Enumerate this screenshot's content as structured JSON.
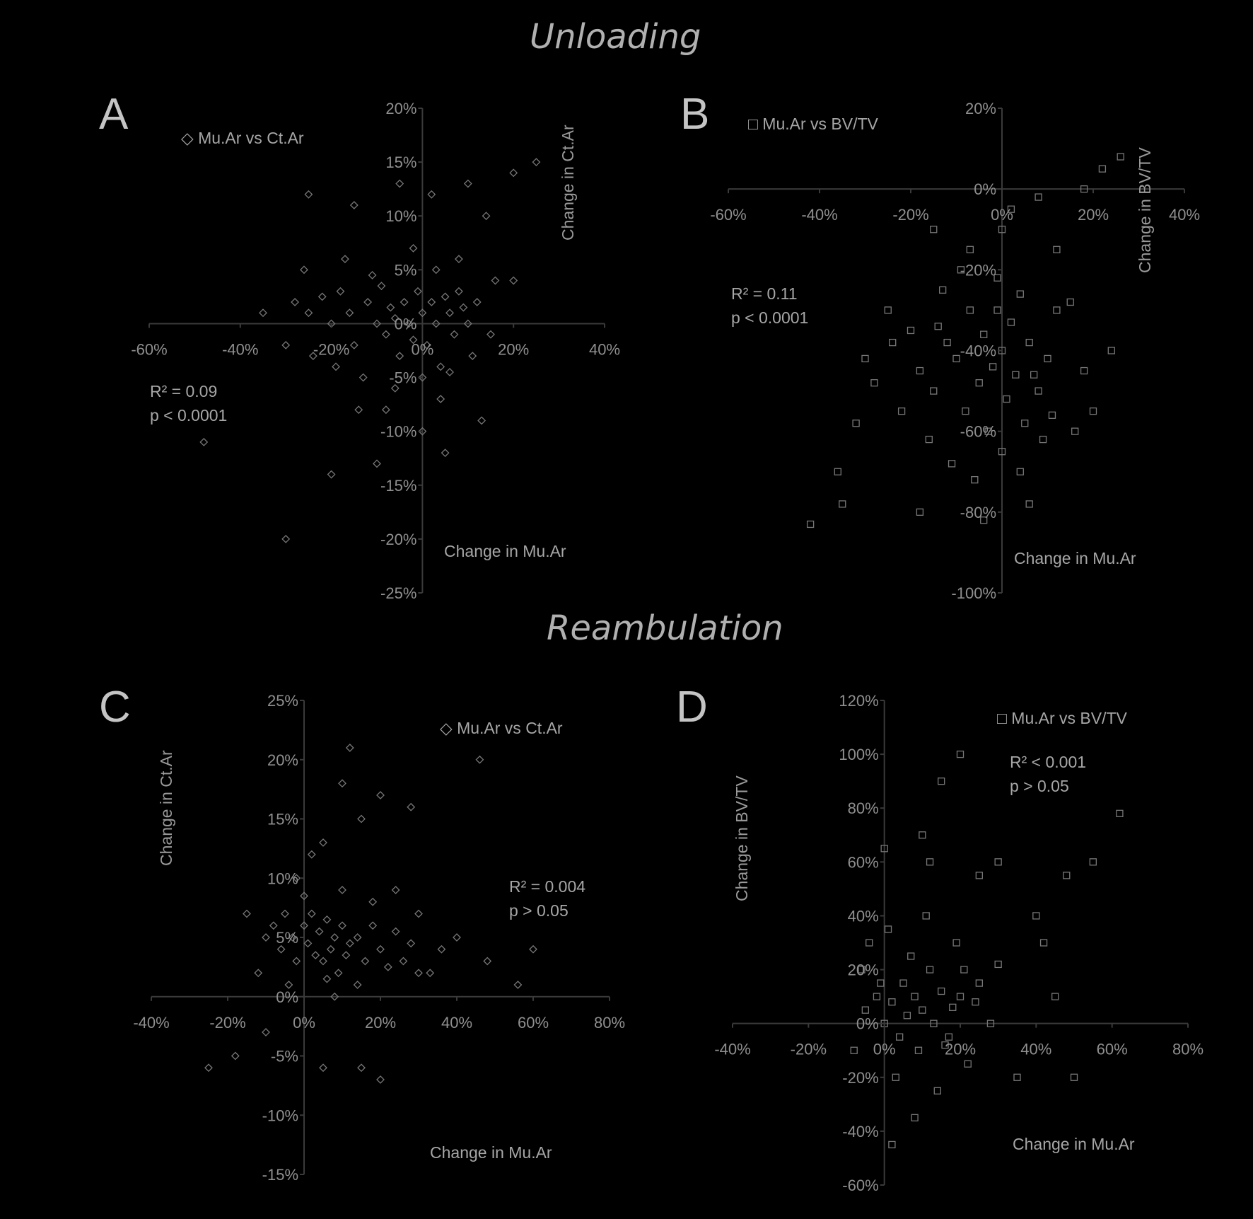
{
  "titles": {
    "unloading": "Unloading",
    "reambulation": "Reambulation"
  },
  "panels": {
    "A": {
      "letter": "A",
      "legend": "Mu.Ar vs Ct.Ar",
      "xlabel": "Change in Mu.Ar",
      "ylabel": "Change in Ct.Ar",
      "stats": [
        "R² = 0.09",
        "p < 0.0001"
      ]
    },
    "B": {
      "letter": "B",
      "legend": "Mu.Ar vs BV/TV",
      "xlabel": "Change in Mu.Ar",
      "ylabel": "Change in BV/TV",
      "stats": [
        "R² = 0.11",
        "p < 0.0001"
      ]
    },
    "C": {
      "letter": "C",
      "legend": "Mu.Ar vs Ct.Ar",
      "xlabel": "Change in Mu.Ar",
      "ylabel": "Change in Ct.Ar",
      "stats": [
        "R² = 0.004",
        "p > 0.05"
      ]
    },
    "D": {
      "letter": "D",
      "legend": "Mu.Ar vs BV/TV",
      "xlabel": "Change in Mu.Ar",
      "ylabel": "Change in BV/TV",
      "stats": [
        "R² < 0.001",
        "p > 0.05"
      ]
    }
  },
  "chart_data": [
    {
      "id": "A",
      "type": "scatter",
      "marker": "diamond",
      "xlim": [
        -0.6,
        0.4
      ],
      "ylim": [
        -0.25,
        0.2
      ],
      "xticks": [
        -0.6,
        -0.4,
        -0.2,
        0,
        0.2,
        0.4
      ],
      "xtick_labels": [
        "-60%",
        "-40%",
        "-20%",
        "0%",
        "20%",
        "40%"
      ],
      "yticks": [
        0.2,
        0.15,
        0.1,
        0.05,
        0,
        -0.05,
        -0.1,
        -0.15,
        -0.2,
        -0.25
      ],
      "ytick_labels": [
        "20%",
        "15%",
        "10%",
        "5%",
        "0%",
        "-5%",
        "-10%",
        "-15%",
        "-20%",
        "-25%"
      ],
      "points": [
        [
          -0.28,
          0.02
        ],
        [
          -0.25,
          0.01
        ],
        [
          -0.22,
          0.025
        ],
        [
          -0.2,
          0.0
        ],
        [
          -0.18,
          0.03
        ],
        [
          -0.16,
          0.01
        ],
        [
          -0.15,
          -0.02
        ],
        [
          -0.12,
          0.02
        ],
        [
          -0.1,
          0.0
        ],
        [
          -0.09,
          0.035
        ],
        [
          -0.08,
          -0.01
        ],
        [
          -0.07,
          0.015
        ],
        [
          -0.06,
          0.005
        ],
        [
          -0.05,
          -0.03
        ],
        [
          -0.04,
          0.02
        ],
        [
          -0.03,
          0.0
        ],
        [
          -0.02,
          -0.015
        ],
        [
          -0.01,
          0.03
        ],
        [
          0.0,
          0.01
        ],
        [
          0.01,
          -0.02
        ],
        [
          0.02,
          0.02
        ],
        [
          0.03,
          0.0
        ],
        [
          0.04,
          -0.04
        ],
        [
          0.05,
          0.025
        ],
        [
          0.06,
          0.01
        ],
        [
          0.07,
          -0.01
        ],
        [
          0.08,
          0.03
        ],
        [
          0.09,
          0.015
        ],
        [
          0.1,
          0.0
        ],
        [
          0.12,
          0.02
        ],
        [
          -0.24,
          -0.03
        ],
        [
          -0.19,
          -0.04
        ],
        [
          -0.13,
          -0.05
        ],
        [
          -0.11,
          0.045
        ],
        [
          -0.06,
          -0.06
        ],
        [
          0.0,
          -0.05
        ],
        [
          0.03,
          0.05
        ],
        [
          0.06,
          -0.045
        ],
        [
          0.11,
          -0.03
        ],
        [
          0.16,
          0.04
        ],
        [
          0.2,
          0.04
        ],
        [
          -0.35,
          0.01
        ],
        [
          -0.3,
          -0.02
        ],
        [
          0.08,
          0.06
        ],
        [
          0.14,
          0.1
        ],
        [
          0.2,
          0.14
        ],
        [
          0.25,
          0.15
        ],
        [
          0.02,
          0.12
        ],
        [
          -0.05,
          0.13
        ],
        [
          -0.15,
          0.11
        ],
        [
          -0.25,
          0.12
        ],
        [
          0.1,
          0.13
        ],
        [
          0.05,
          -0.12
        ],
        [
          -0.1,
          -0.13
        ],
        [
          -0.2,
          -0.14
        ],
        [
          -0.3,
          -0.2
        ],
        [
          -0.48,
          -0.11
        ],
        [
          0.0,
          -0.1
        ],
        [
          -0.08,
          -0.08
        ],
        [
          0.13,
          -0.09
        ],
        [
          -0.17,
          0.06
        ],
        [
          -0.02,
          0.07
        ],
        [
          0.04,
          -0.07
        ],
        [
          -0.14,
          -0.08
        ],
        [
          -0.26,
          0.05
        ],
        [
          0.15,
          -0.01
        ]
      ]
    },
    {
      "id": "B",
      "type": "scatter",
      "marker": "square",
      "xlim": [
        -0.6,
        0.4
      ],
      "ylim": [
        -1.0,
        0.2
      ],
      "xticks": [
        -0.6,
        -0.4,
        -0.2,
        0,
        0.2,
        0.4
      ],
      "xtick_labels": [
        "-60%",
        "-40%",
        "-20%",
        "0%",
        "20%",
        "40%"
      ],
      "yticks": [
        0.2,
        0,
        -0.2,
        -0.4,
        -0.6,
        -0.8,
        -1.0
      ],
      "ytick_labels": [
        "20%",
        "0%",
        "-20%",
        "-40%",
        "-60%",
        "-80%",
        "-100%"
      ],
      "points": [
        [
          -0.25,
          -0.3
        ],
        [
          -0.2,
          -0.35
        ],
        [
          -0.18,
          -0.45
        ],
        [
          -0.15,
          -0.5
        ],
        [
          -0.12,
          -0.38
        ],
        [
          -0.1,
          -0.42
        ],
        [
          -0.08,
          -0.55
        ],
        [
          -0.07,
          -0.3
        ],
        [
          -0.05,
          -0.48
        ],
        [
          -0.04,
          -0.36
        ],
        [
          -0.03,
          -0.6
        ],
        [
          -0.02,
          -0.44
        ],
        [
          0.0,
          -0.4
        ],
        [
          0.01,
          -0.52
        ],
        [
          0.02,
          -0.33
        ],
        [
          0.03,
          -0.46
        ],
        [
          0.05,
          -0.58
        ],
        [
          0.06,
          -0.38
        ],
        [
          0.08,
          -0.5
        ],
        [
          0.1,
          -0.42
        ],
        [
          -0.22,
          -0.55
        ],
        [
          -0.16,
          -0.62
        ],
        [
          -0.11,
          -0.68
        ],
        [
          -0.06,
          -0.72
        ],
        [
          0.0,
          -0.65
        ],
        [
          0.04,
          -0.7
        ],
        [
          0.09,
          -0.62
        ],
        [
          -0.13,
          -0.25
        ],
        [
          -0.09,
          -0.2
        ],
        [
          -0.01,
          -0.22
        ],
        [
          0.04,
          -0.26
        ],
        [
          0.12,
          -0.3
        ],
        [
          0.15,
          -0.28
        ],
        [
          0.18,
          -0.45
        ],
        [
          0.2,
          -0.55
        ],
        [
          -0.28,
          -0.48
        ],
        [
          -0.32,
          -0.58
        ],
        [
          -0.36,
          -0.7
        ],
        [
          -0.3,
          -0.42
        ],
        [
          0.0,
          -0.1
        ],
        [
          0.02,
          -0.05
        ],
        [
          0.08,
          -0.02
        ],
        [
          0.18,
          0.0
        ],
        [
          0.22,
          0.05
        ],
        [
          0.26,
          0.08
        ],
        [
          -0.15,
          -0.1
        ],
        [
          -0.07,
          -0.15
        ],
        [
          0.12,
          -0.15
        ],
        [
          0.06,
          -0.78
        ],
        [
          -0.04,
          -0.82
        ],
        [
          -0.18,
          -0.8
        ],
        [
          -0.42,
          -0.83
        ],
        [
          -0.35,
          -0.78
        ],
        [
          0.16,
          -0.6
        ],
        [
          0.24,
          -0.4
        ],
        [
          -0.24,
          -0.38
        ],
        [
          -0.14,
          -0.34
        ],
        [
          0.07,
          -0.46
        ],
        [
          -0.01,
          -0.3
        ],
        [
          0.11,
          -0.56
        ]
      ]
    },
    {
      "id": "C",
      "type": "scatter",
      "marker": "diamond",
      "xlim": [
        -0.4,
        0.8
      ],
      "ylim": [
        -0.15,
        0.25
      ],
      "xticks": [
        -0.4,
        -0.2,
        0,
        0.2,
        0.4,
        0.6,
        0.8
      ],
      "xtick_labels": [
        "-40%",
        "-20%",
        "0%",
        "20%",
        "40%",
        "60%",
        "80%"
      ],
      "yticks": [
        0.25,
        0.2,
        0.15,
        0.1,
        0.05,
        0,
        -0.05,
        -0.1,
        -0.15
      ],
      "ytick_labels": [
        "25%",
        "20%",
        "15%",
        "10%",
        "5%",
        "0%",
        "-5%",
        "-10%",
        "-15%"
      ],
      "points": [
        [
          -0.1,
          0.05
        ],
        [
          -0.08,
          0.06
        ],
        [
          -0.06,
          0.04
        ],
        [
          -0.05,
          0.07
        ],
        [
          -0.03,
          0.05
        ],
        [
          -0.02,
          0.03
        ],
        [
          0.0,
          0.06
        ],
        [
          0.01,
          0.045
        ],
        [
          0.02,
          0.07
        ],
        [
          0.03,
          0.035
        ],
        [
          0.04,
          0.055
        ],
        [
          0.05,
          0.03
        ],
        [
          0.06,
          0.065
        ],
        [
          0.07,
          0.04
        ],
        [
          0.08,
          0.05
        ],
        [
          0.09,
          0.02
        ],
        [
          0.1,
          0.06
        ],
        [
          0.11,
          0.035
        ],
        [
          0.12,
          0.045
        ],
        [
          0.14,
          0.05
        ],
        [
          0.16,
          0.03
        ],
        [
          0.18,
          0.06
        ],
        [
          0.2,
          0.04
        ],
        [
          0.22,
          0.025
        ],
        [
          0.24,
          0.055
        ],
        [
          0.26,
          0.03
        ],
        [
          0.28,
          0.045
        ],
        [
          0.3,
          0.02
        ],
        [
          -0.12,
          0.02
        ],
        [
          -0.04,
          0.01
        ],
        [
          0.06,
          0.015
        ],
        [
          0.14,
          0.01
        ],
        [
          0.0,
          0.085
        ],
        [
          0.1,
          0.09
        ],
        [
          -0.02,
          0.1
        ],
        [
          0.05,
          0.13
        ],
        [
          0.15,
          0.15
        ],
        [
          0.2,
          0.17
        ],
        [
          0.28,
          0.16
        ],
        [
          0.12,
          0.21
        ],
        [
          0.1,
          0.18
        ],
        [
          0.46,
          0.2
        ],
        [
          0.4,
          0.05
        ],
        [
          0.48,
          0.03
        ],
        [
          0.56,
          0.01
        ],
        [
          0.6,
          0.04
        ],
        [
          0.33,
          0.02
        ],
        [
          -0.25,
          -0.06
        ],
        [
          -0.18,
          -0.05
        ],
        [
          0.05,
          -0.06
        ],
        [
          0.15,
          -0.06
        ],
        [
          0.2,
          -0.07
        ],
        [
          0.08,
          0.0
        ],
        [
          0.3,
          0.07
        ],
        [
          0.02,
          0.12
        ],
        [
          -0.15,
          0.07
        ],
        [
          -0.1,
          -0.03
        ],
        [
          0.18,
          0.08
        ],
        [
          0.24,
          0.09
        ],
        [
          0.36,
          0.04
        ]
      ]
    },
    {
      "id": "D",
      "type": "scatter",
      "marker": "square",
      "xlim": [
        -0.4,
        0.8
      ],
      "ylim": [
        -0.6,
        1.2
      ],
      "xticks": [
        -0.4,
        -0.2,
        0,
        0.2,
        0.4,
        0.6,
        0.8
      ],
      "xtick_labels": [
        "-40%",
        "-20%",
        "0%",
        "20%",
        "40%",
        "60%",
        "80%"
      ],
      "yticks": [
        1.2,
        1.0,
        0.8,
        0.6,
        0.4,
        0.2,
        0,
        -0.2,
        -0.4,
        -0.6
      ],
      "ytick_labels": [
        "120%",
        "100%",
        "80%",
        "60%",
        "40%",
        "20%",
        "0%",
        "-20%",
        "-40%",
        "-60%"
      ],
      "points": [
        [
          -0.05,
          0.05
        ],
        [
          -0.02,
          0.1
        ],
        [
          0.0,
          0.0
        ],
        [
          0.02,
          0.08
        ],
        [
          0.04,
          -0.05
        ],
        [
          0.05,
          0.15
        ],
        [
          0.06,
          0.03
        ],
        [
          0.08,
          0.1
        ],
        [
          0.09,
          -0.1
        ],
        [
          0.1,
          0.05
        ],
        [
          0.12,
          0.2
        ],
        [
          0.13,
          0.0
        ],
        [
          0.15,
          0.12
        ],
        [
          0.16,
          -0.08
        ],
        [
          0.18,
          0.06
        ],
        [
          0.2,
          0.1
        ],
        [
          0.22,
          -0.15
        ],
        [
          0.24,
          0.08
        ],
        [
          -0.08,
          -0.1
        ],
        [
          -0.06,
          0.2
        ],
        [
          -0.04,
          0.3
        ],
        [
          0.01,
          0.35
        ],
        [
          0.03,
          -0.2
        ],
        [
          0.07,
          0.25
        ],
        [
          0.11,
          0.4
        ],
        [
          0.14,
          -0.25
        ],
        [
          0.19,
          0.3
        ],
        [
          0.25,
          0.15
        ],
        [
          0.28,
          0.0
        ],
        [
          0.3,
          0.22
        ],
        [
          0.35,
          -0.2
        ],
        [
          0.42,
          0.3
        ],
        [
          0.48,
          0.55
        ],
        [
          0.55,
          0.6
        ],
        [
          0.62,
          0.78
        ],
        [
          0.5,
          -0.2
        ],
        [
          0.45,
          0.1
        ],
        [
          0.4,
          0.4
        ],
        [
          0.1,
          0.7
        ],
        [
          0.15,
          0.9
        ],
        [
          0.2,
          1.0
        ],
        [
          0.12,
          0.6
        ],
        [
          0.0,
          0.65
        ],
        [
          0.08,
          -0.35
        ],
        [
          0.02,
          -0.45
        ],
        [
          0.25,
          0.55
        ],
        [
          0.3,
          0.6
        ],
        [
          -0.01,
          0.15
        ],
        [
          0.17,
          -0.05
        ],
        [
          0.21,
          0.2
        ]
      ]
    }
  ]
}
